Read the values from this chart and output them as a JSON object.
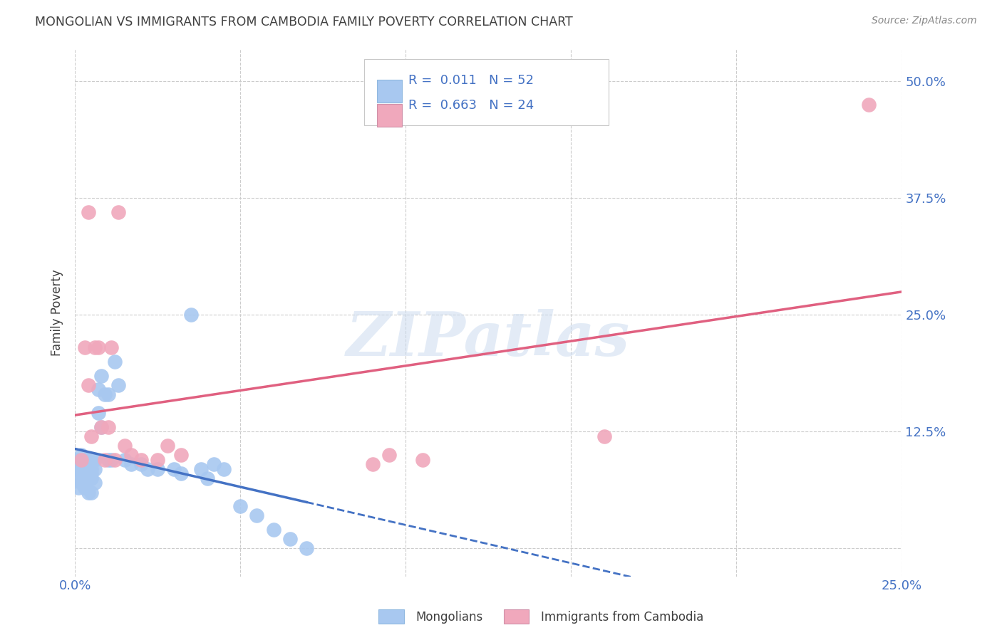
{
  "title": "MONGOLIAN VS IMMIGRANTS FROM CAMBODIA FAMILY POVERTY CORRELATION CHART",
  "source": "Source: ZipAtlas.com",
  "ylabel": "Family Poverty",
  "xlim": [
    0.0,
    0.25
  ],
  "ylim": [
    -0.03,
    0.535
  ],
  "yticks": [
    0.0,
    0.125,
    0.25,
    0.375,
    0.5
  ],
  "ytick_labels": [
    "",
    "12.5%",
    "25.0%",
    "37.5%",
    "50.0%"
  ],
  "xticks": [
    0.0,
    0.05,
    0.1,
    0.15,
    0.2,
    0.25
  ],
  "xtick_labels": [
    "0.0%",
    "",
    "",
    "",
    "",
    "25.0%"
  ],
  "mongolian_color": "#a8c8f0",
  "cambodia_color": "#f0a8bc",
  "mongolian_line_color": "#4472c4",
  "cambodia_line_color": "#e06080",
  "background_color": "#ffffff",
  "grid_color": "#cccccc",
  "title_color": "#404040",
  "axis_label_color": "#4472c4",
  "watermark": "ZIPatlas",
  "mongolian_x": [
    0.001,
    0.001,
    0.001,
    0.001,
    0.002,
    0.002,
    0.002,
    0.002,
    0.002,
    0.003,
    0.003,
    0.003,
    0.003,
    0.004,
    0.004,
    0.004,
    0.004,
    0.005,
    0.005,
    0.005,
    0.005,
    0.005,
    0.006,
    0.006,
    0.006,
    0.007,
    0.007,
    0.008,
    0.008,
    0.009,
    0.01,
    0.01,
    0.011,
    0.012,
    0.013,
    0.015,
    0.017,
    0.02,
    0.022,
    0.025,
    0.03,
    0.032,
    0.035,
    0.038,
    0.04,
    0.042,
    0.045,
    0.05,
    0.055,
    0.06,
    0.065,
    0.07
  ],
  "mongolian_y": [
    0.095,
    0.085,
    0.075,
    0.065,
    0.1,
    0.09,
    0.085,
    0.08,
    0.07,
    0.095,
    0.085,
    0.075,
    0.065,
    0.095,
    0.085,
    0.075,
    0.06,
    0.095,
    0.085,
    0.08,
    0.075,
    0.06,
    0.095,
    0.085,
    0.07,
    0.17,
    0.145,
    0.185,
    0.13,
    0.165,
    0.095,
    0.165,
    0.095,
    0.2,
    0.175,
    0.095,
    0.09,
    0.09,
    0.085,
    0.085,
    0.085,
    0.08,
    0.25,
    0.085,
    0.075,
    0.09,
    0.085,
    0.045,
    0.035,
    0.02,
    0.01,
    0.0
  ],
  "cambodia_x": [
    0.002,
    0.003,
    0.004,
    0.004,
    0.005,
    0.006,
    0.007,
    0.008,
    0.009,
    0.01,
    0.011,
    0.012,
    0.013,
    0.015,
    0.017,
    0.02,
    0.025,
    0.028,
    0.032,
    0.09,
    0.095,
    0.105,
    0.16,
    0.24
  ],
  "cambodia_y": [
    0.095,
    0.215,
    0.175,
    0.36,
    0.12,
    0.215,
    0.215,
    0.13,
    0.095,
    0.13,
    0.215,
    0.095,
    0.36,
    0.11,
    0.1,
    0.095,
    0.095,
    0.11,
    0.1,
    0.09,
    0.1,
    0.095,
    0.12,
    0.475
  ]
}
